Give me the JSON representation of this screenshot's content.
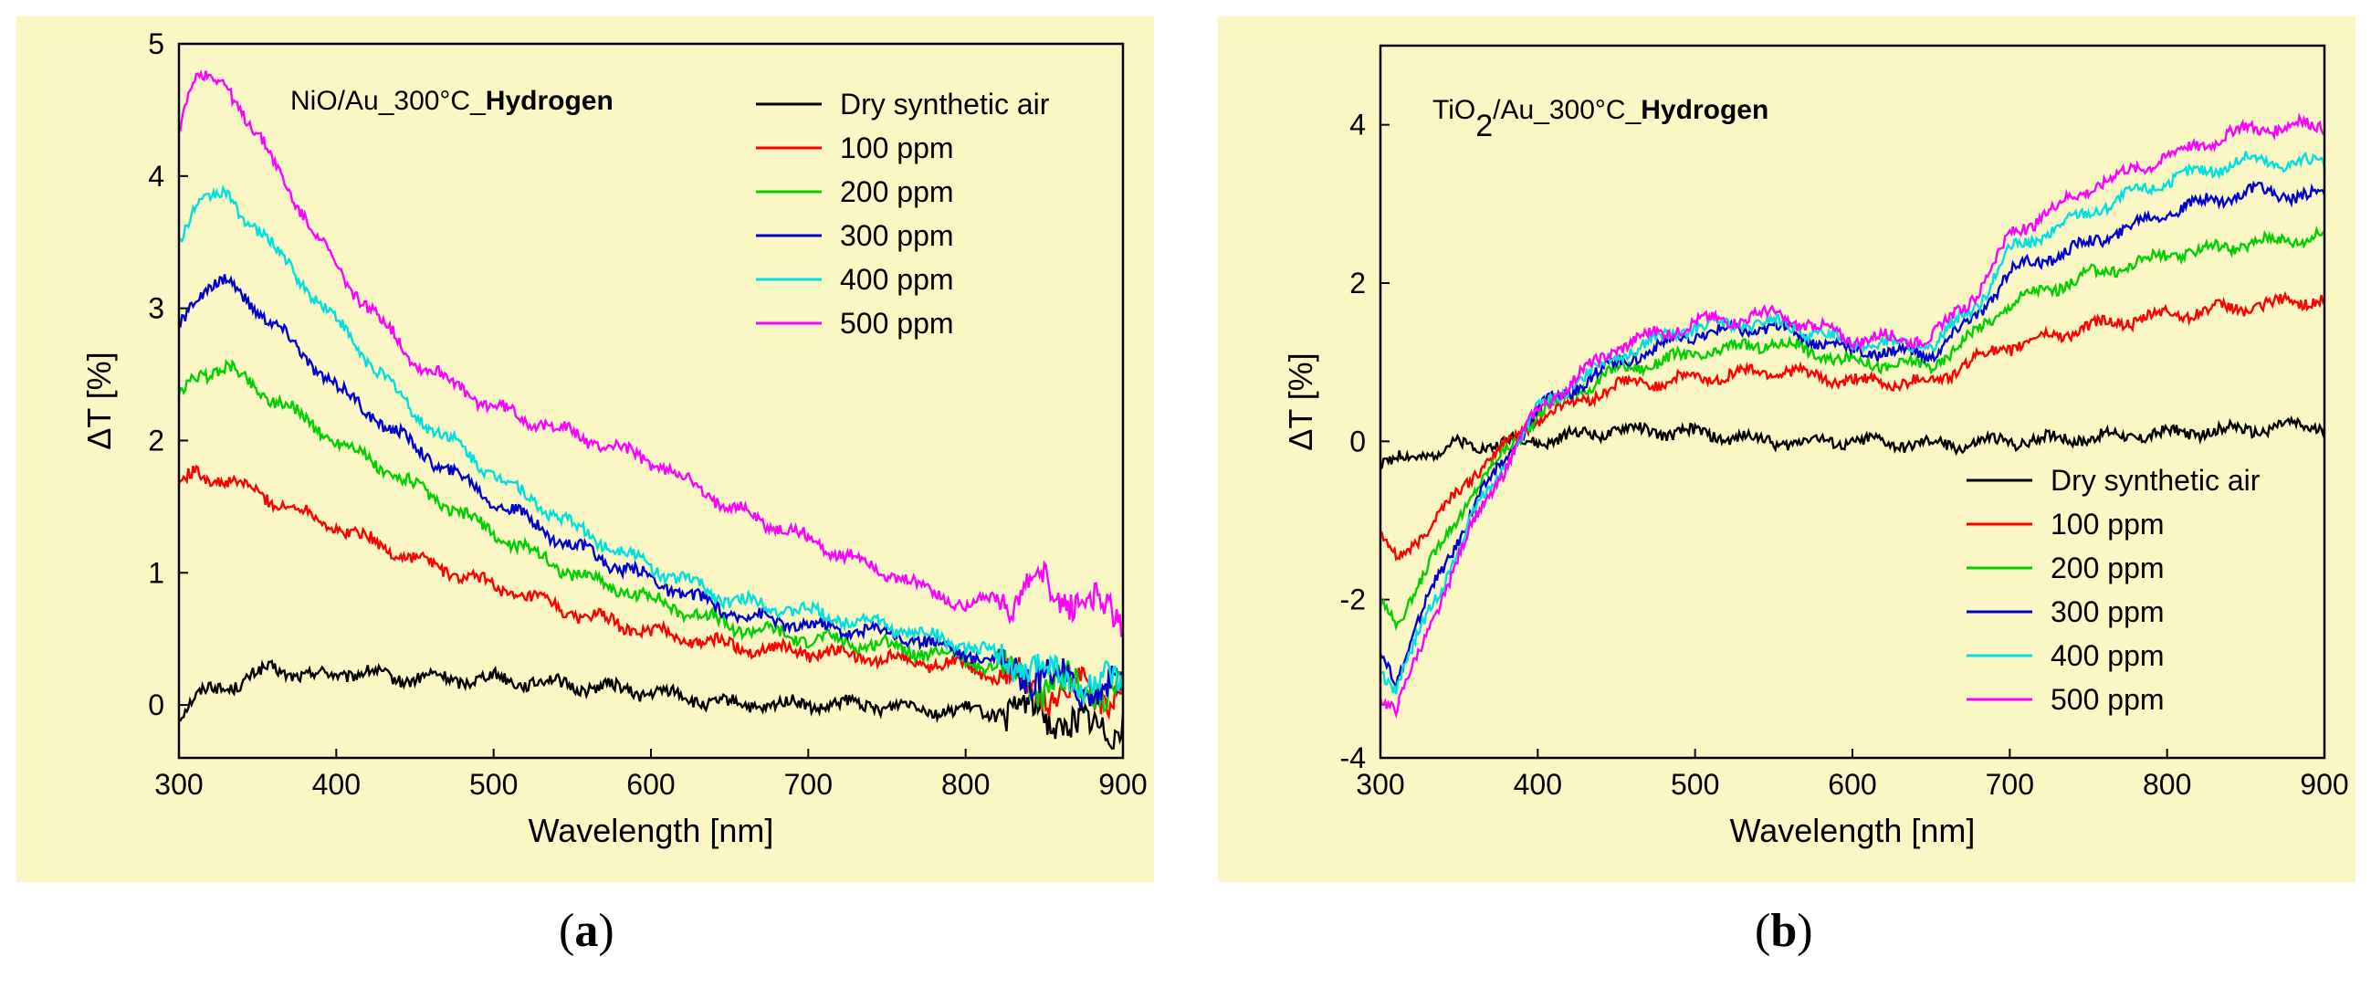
{
  "chart_data": [
    {
      "type": "line",
      "panel_label": "a",
      "title_text": "NiO/Au_300°C_",
      "title_bold": "Hydrogen",
      "xlabel": "Wavelength [nm]",
      "ylabel": "ΔT [%]",
      "xlim": [
        300,
        900
      ],
      "ylim": [
        -0.4,
        5
      ],
      "xticks": [
        300,
        400,
        500,
        600,
        700,
        800,
        900
      ],
      "yticks": [
        0,
        1,
        2,
        3,
        4,
        5
      ],
      "legend_position": "top-right",
      "series": [
        {
          "name": "Dry synthetic air",
          "color": "#000000",
          "x": [
            300,
            320,
            340,
            360,
            380,
            400,
            450,
            500,
            550,
            600,
            650,
            700,
            750,
            800,
            850,
            880,
            900
          ],
          "y": [
            -0.1,
            0.15,
            0.15,
            0.3,
            0.2,
            0.25,
            0.2,
            0.2,
            0.15,
            0.1,
            0.0,
            0.0,
            0.0,
            -0.05,
            -0.05,
            -0.2,
            -0.1
          ]
        },
        {
          "name": "100 ppm",
          "color": "#ff0000",
          "x": [
            300,
            310,
            330,
            350,
            400,
            450,
            500,
            550,
            600,
            650,
            700,
            750,
            800,
            850,
            900
          ],
          "y": [
            1.65,
            1.75,
            1.7,
            1.6,
            1.35,
            1.1,
            0.9,
            0.7,
            0.55,
            0.45,
            0.4,
            0.35,
            0.3,
            0.1,
            0.1
          ]
        },
        {
          "name": "200 ppm",
          "color": "#00d000",
          "x": [
            300,
            310,
            330,
            350,
            400,
            450,
            500,
            550,
            600,
            650,
            700,
            750,
            800,
            850,
            900
          ],
          "y": [
            2.3,
            2.5,
            2.55,
            2.4,
            2.0,
            1.65,
            1.3,
            1.0,
            0.8,
            0.6,
            0.5,
            0.45,
            0.35,
            0.15,
            0.1
          ]
        },
        {
          "name": "300 ppm",
          "color": "#0000cc",
          "x": [
            300,
            310,
            330,
            350,
            400,
            450,
            500,
            550,
            600,
            650,
            700,
            750,
            800,
            850,
            900
          ],
          "y": [
            2.85,
            3.1,
            3.2,
            3.0,
            2.4,
            1.95,
            1.55,
            1.2,
            0.95,
            0.7,
            0.6,
            0.55,
            0.4,
            0.2,
            0.1
          ]
        },
        {
          "name": "400 ppm",
          "color": "#00e0e0",
          "x": [
            300,
            310,
            330,
            350,
            400,
            450,
            500,
            550,
            600,
            650,
            700,
            750,
            800,
            850,
            900
          ],
          "y": [
            3.5,
            3.8,
            3.85,
            3.6,
            2.9,
            2.2,
            1.75,
            1.35,
            1.05,
            0.8,
            0.7,
            0.6,
            0.45,
            0.25,
            0.1
          ]
        },
        {
          "name": "500 ppm",
          "color": "#ff00ff",
          "x": [
            300,
            310,
            330,
            350,
            400,
            450,
            500,
            550,
            600,
            650,
            700,
            750,
            800,
            850,
            900
          ],
          "y": [
            4.4,
            4.75,
            4.7,
            4.3,
            3.3,
            2.6,
            2.25,
            2.05,
            1.85,
            1.5,
            1.25,
            1.0,
            0.75,
            0.9,
            0.65
          ]
        }
      ]
    },
    {
      "type": "line",
      "panel_label": "b",
      "title_text": "TiO",
      "title_sub": "2",
      "title_text2": "/Au_300°C_",
      "title_bold": "Hydrogen",
      "xlabel": "Wavelength [nm]",
      "ylabel": "ΔT [%]",
      "xlim": [
        300,
        900
      ],
      "ylim": [
        -4,
        5
      ],
      "xticks": [
        300,
        400,
        500,
        600,
        700,
        800,
        900
      ],
      "yticks": [
        -4,
        -2,
        0,
        2,
        4
      ],
      "legend_position": "bottom-right",
      "series": [
        {
          "name": "Dry synthetic air",
          "color": "#000000",
          "x": [
            300,
            350,
            400,
            450,
            500,
            550,
            600,
            650,
            700,
            750,
            800,
            850,
            900
          ],
          "y": [
            -0.3,
            -0.05,
            0.0,
            0.15,
            0.1,
            0.0,
            0.0,
            -0.05,
            0.0,
            0.05,
            0.1,
            0.15,
            0.2
          ]
        },
        {
          "name": "100 ppm",
          "color": "#ff0000",
          "x": [
            300,
            310,
            330,
            360,
            400,
            450,
            500,
            550,
            600,
            650,
            680,
            700,
            750,
            800,
            850,
            900
          ],
          "y": [
            -1.2,
            -1.5,
            -1.1,
            -0.4,
            0.3,
            0.7,
            0.8,
            0.9,
            0.75,
            0.75,
            1.05,
            1.2,
            1.45,
            1.6,
            1.7,
            1.8
          ]
        },
        {
          "name": "200 ppm",
          "color": "#00d000",
          "x": [
            300,
            310,
            330,
            360,
            400,
            450,
            500,
            550,
            600,
            650,
            680,
            700,
            750,
            800,
            850,
            900
          ],
          "y": [
            -2.0,
            -2.3,
            -1.6,
            -0.6,
            0.35,
            0.9,
            1.1,
            1.25,
            1.0,
            0.95,
            1.4,
            1.75,
            2.1,
            2.35,
            2.5,
            2.6
          ]
        },
        {
          "name": "300 ppm",
          "color": "#0000cc",
          "x": [
            300,
            310,
            330,
            360,
            400,
            450,
            500,
            550,
            600,
            650,
            680,
            700,
            750,
            800,
            850,
            900
          ],
          "y": [
            -2.7,
            -3.0,
            -2.0,
            -0.8,
            0.4,
            1.0,
            1.35,
            1.45,
            1.15,
            1.1,
            1.6,
            2.15,
            2.5,
            2.9,
            3.15,
            3.1
          ]
        },
        {
          "name": "400 ppm",
          "color": "#00e0e0",
          "x": [
            300,
            310,
            330,
            360,
            400,
            450,
            500,
            550,
            600,
            650,
            680,
            700,
            750,
            800,
            850,
            900
          ],
          "y": [
            -2.9,
            -3.1,
            -2.2,
            -0.9,
            0.4,
            1.1,
            1.45,
            1.5,
            1.25,
            1.2,
            1.75,
            2.4,
            2.9,
            3.3,
            3.55,
            3.5
          ]
        },
        {
          "name": "500 ppm",
          "color": "#ff00ff",
          "x": [
            300,
            310,
            330,
            360,
            400,
            450,
            500,
            550,
            600,
            650,
            680,
            700,
            750,
            800,
            850,
            900
          ],
          "y": [
            -3.2,
            -3.4,
            -2.4,
            -1.0,
            0.4,
            1.2,
            1.5,
            1.6,
            1.3,
            1.3,
            1.9,
            2.6,
            3.2,
            3.6,
            3.95,
            4.0
          ]
        }
      ]
    }
  ]
}
